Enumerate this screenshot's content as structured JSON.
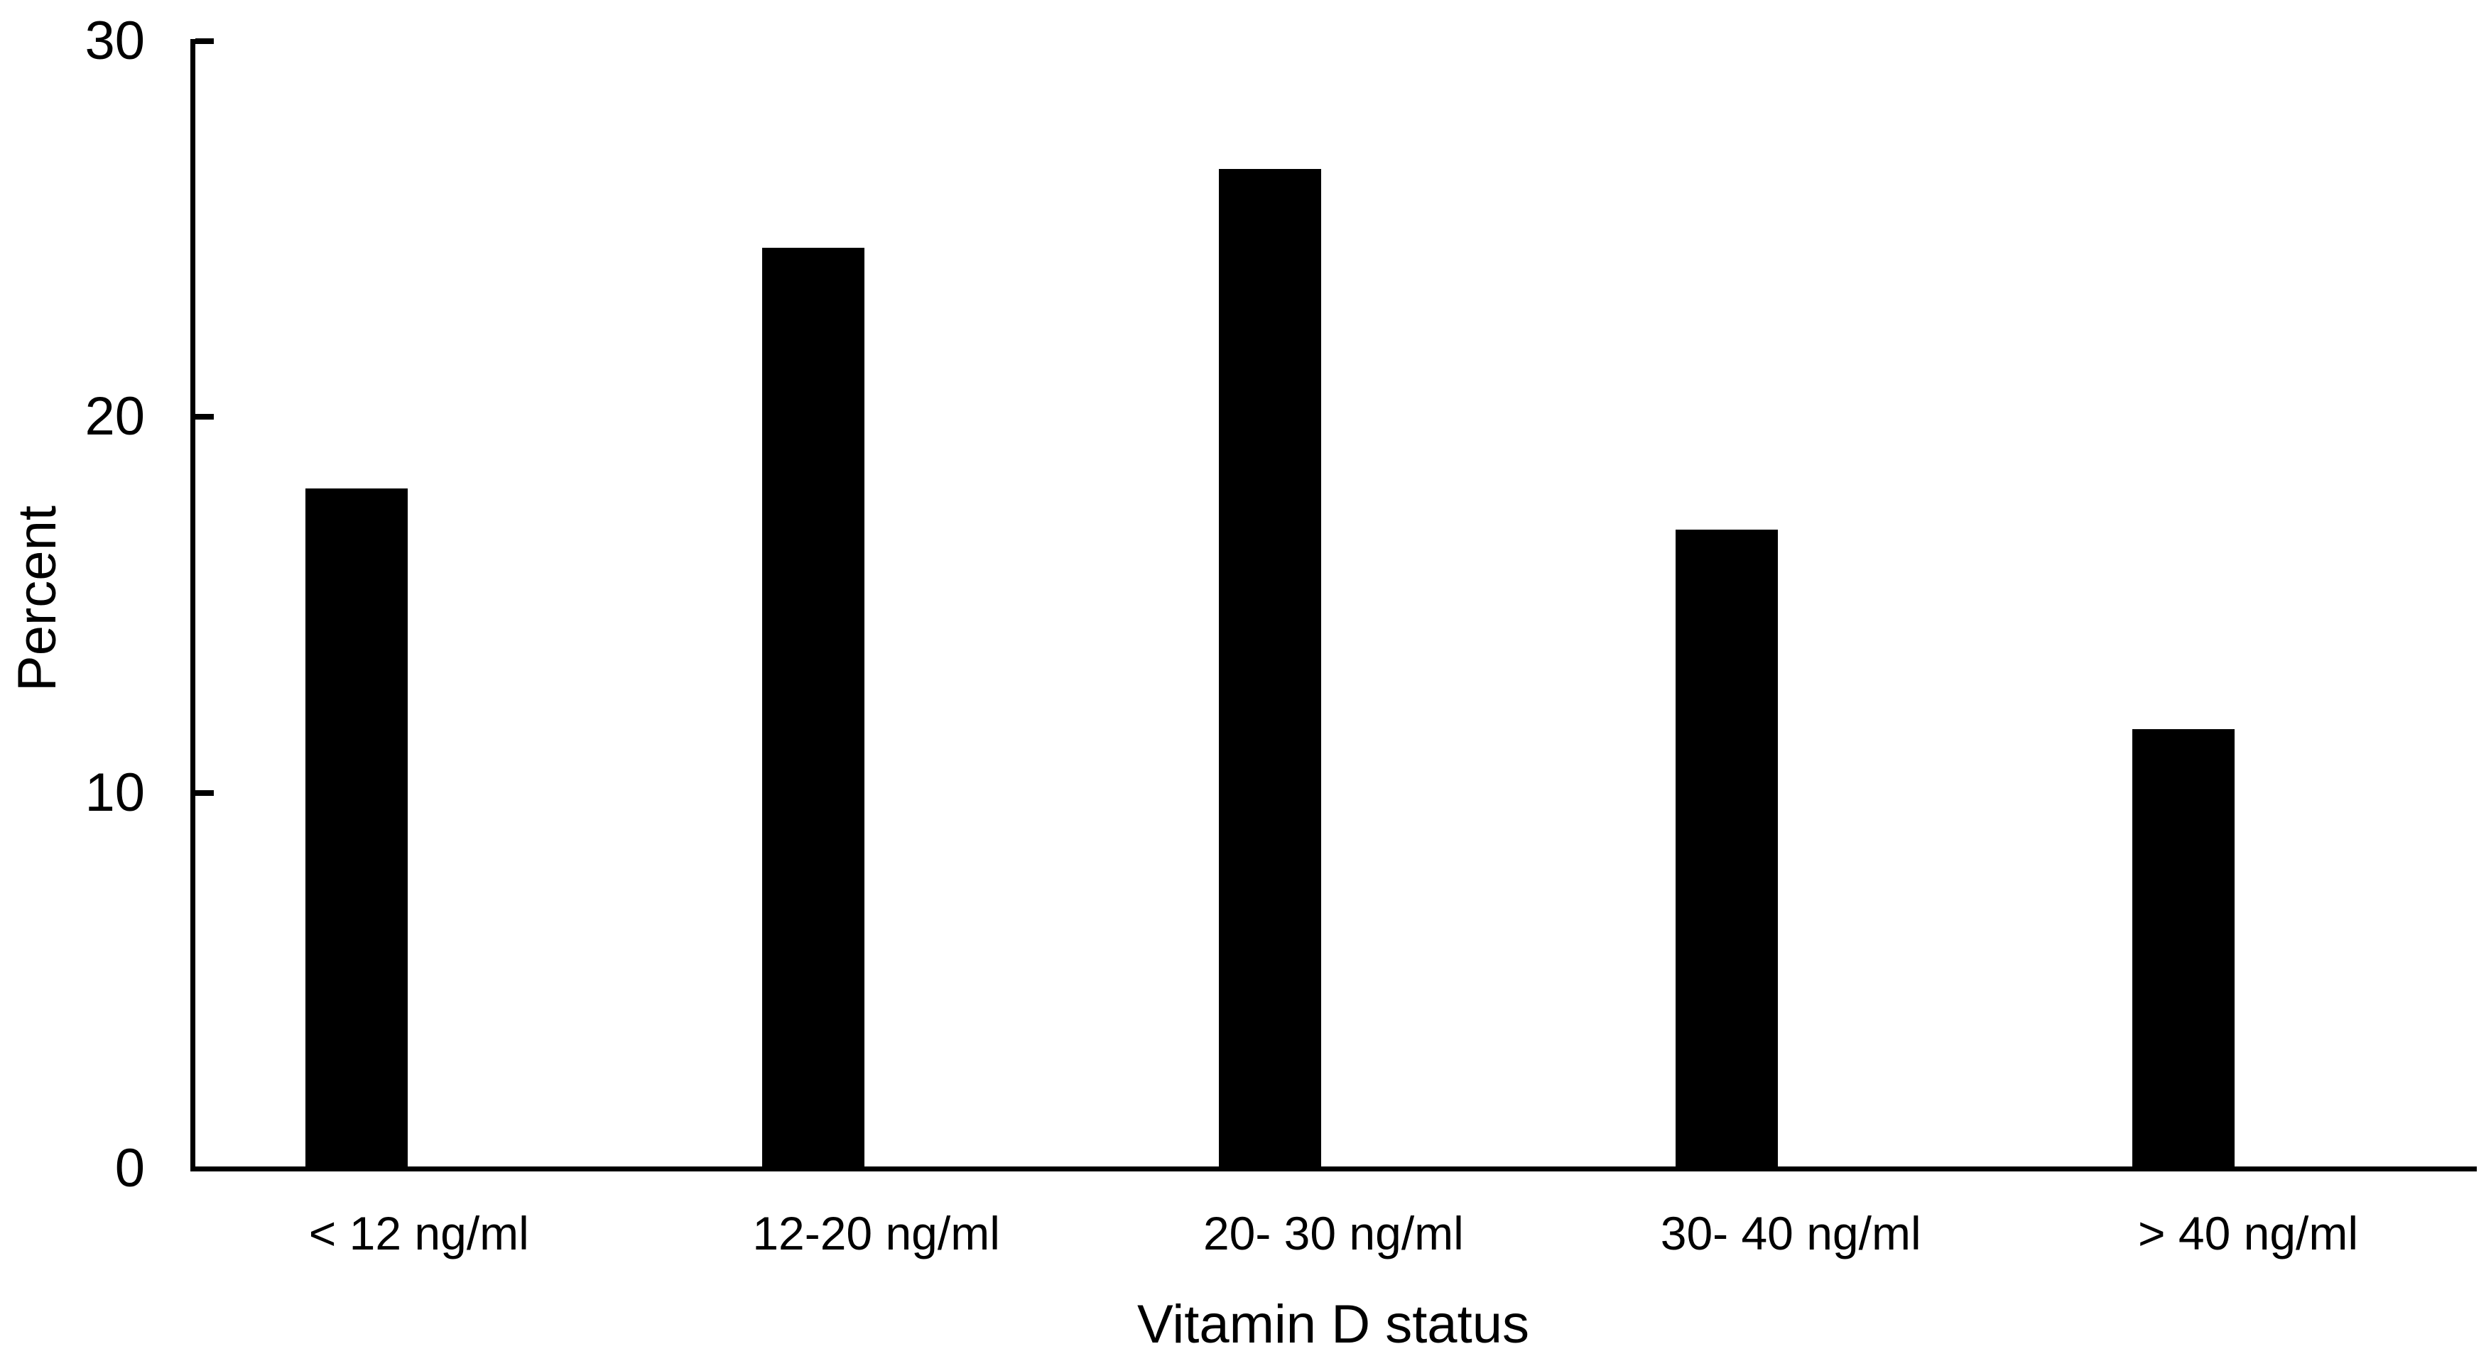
{
  "chart_data": {
    "type": "bar",
    "title": "",
    "xlabel": "Vitamin D status",
    "ylabel": "Percent",
    "categories": [
      "< 12 ng/ml",
      "12-20 ng/ml",
      "20- 30 ng/ml",
      "30- 40 ng/ml",
      "> 40 ng/ml"
    ],
    "values": [
      18.1,
      24.5,
      26.6,
      17.0,
      11.7
    ],
    "ylim": [
      0,
      30
    ],
    "yticks": [
      0,
      10,
      20,
      30
    ],
    "bar_color": "#000000",
    "axis_color": "#000000",
    "background": "#ffffff",
    "grid": false,
    "legend": null
  }
}
